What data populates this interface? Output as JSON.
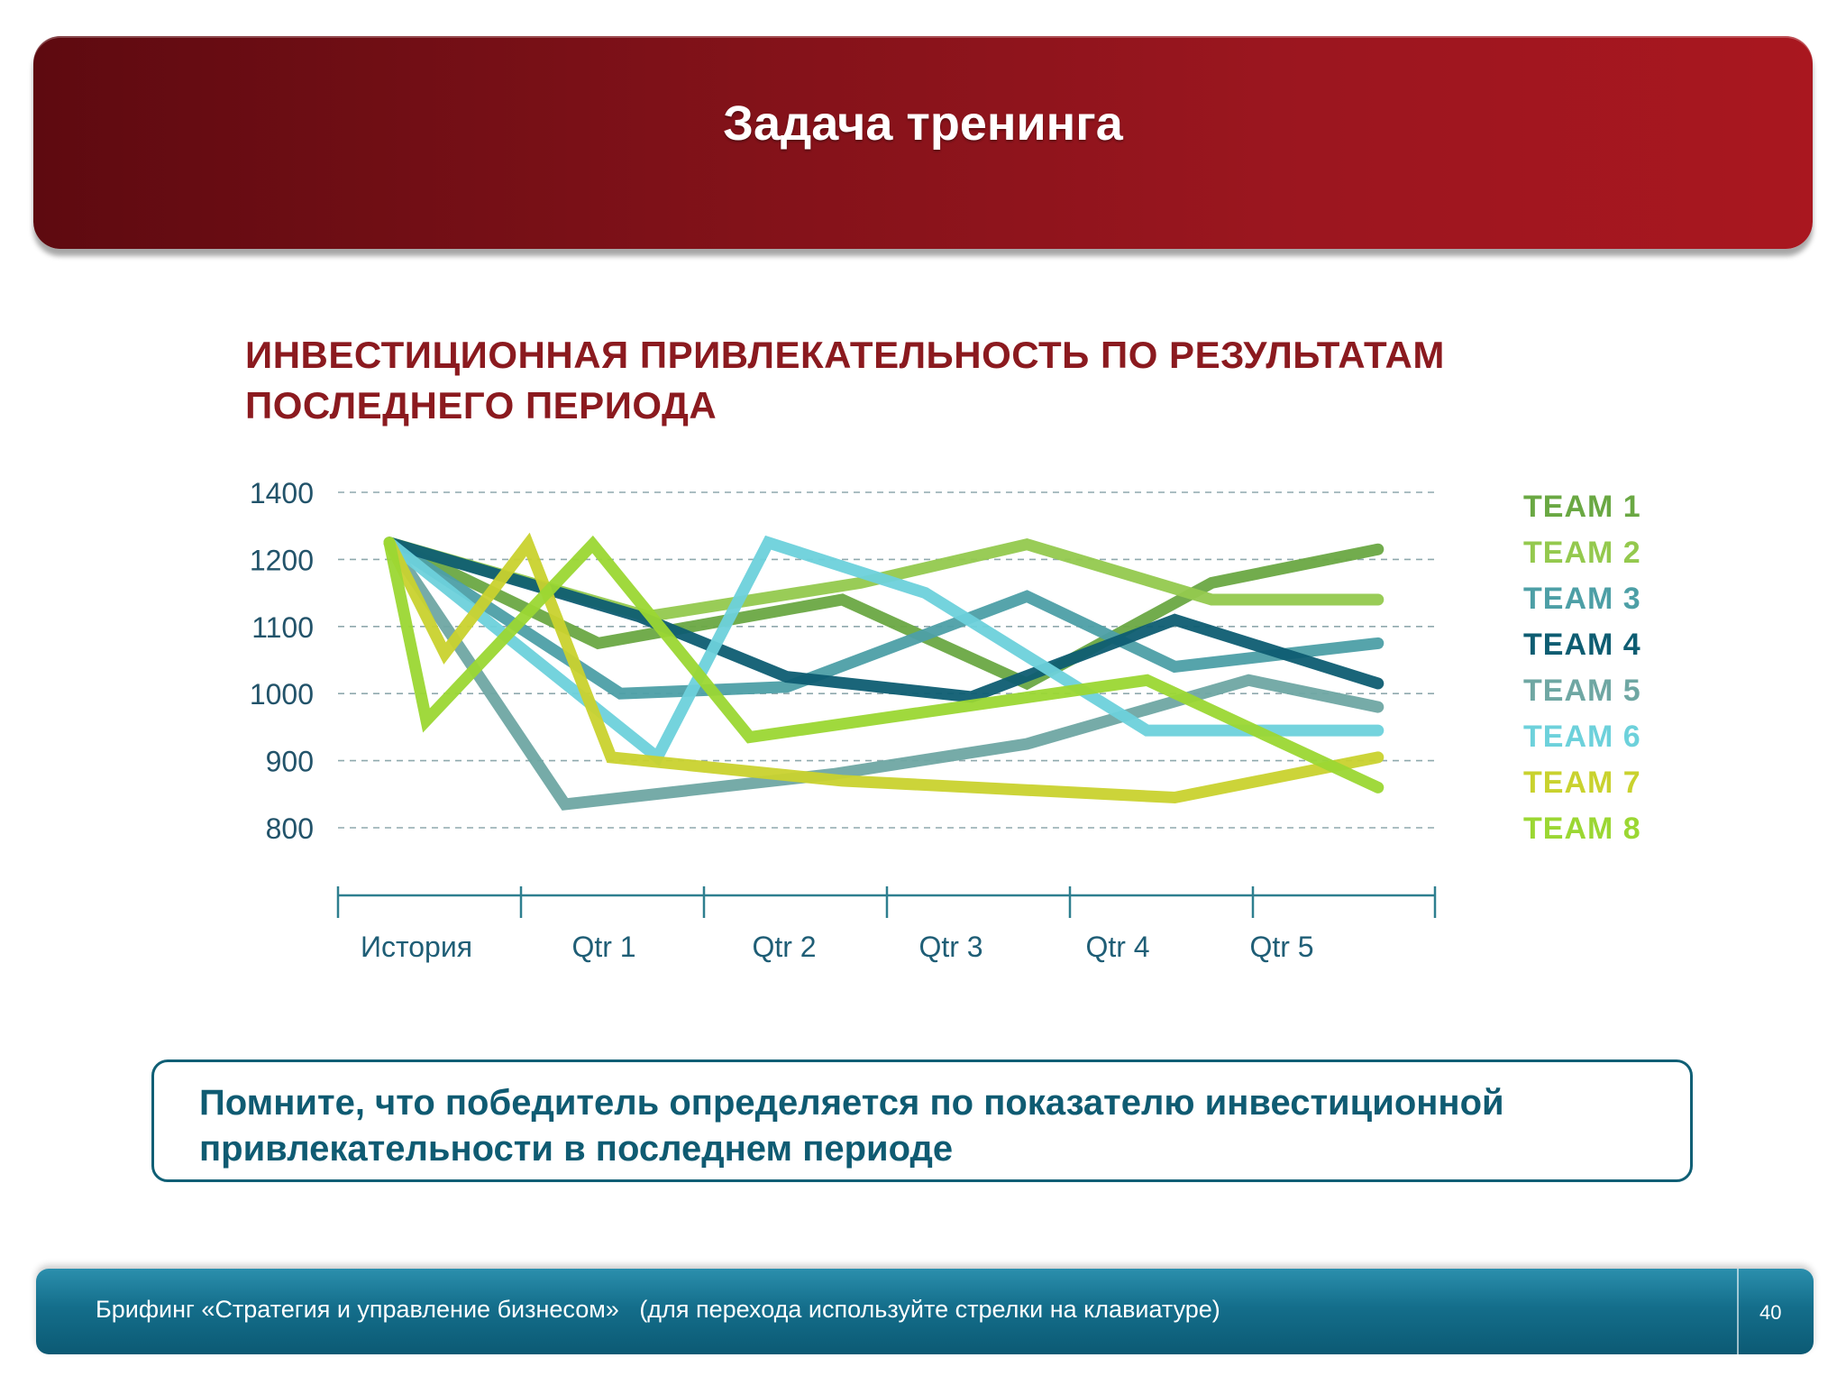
{
  "header": {
    "title": "Задача тренинга"
  },
  "chart_heading": {
    "line1": "ИНВЕСТИЦИОННАЯ  ПРИВЛЕКАТЕЛЬНОСТЬ  ПО  РЕЗУЛЬТАТАМ",
    "line2": "ПОСЛЕДНЕГО ПЕРИОДА"
  },
  "chart_data": {
    "type": "line",
    "title": "",
    "xlabel": "",
    "ylabel": "",
    "categories": [
      "История",
      "Qtr 1",
      "Qtr 2",
      "Qtr 3",
      "Qtr 4",
      "Qtr 5"
    ],
    "yticks": [
      1400,
      1200,
      1100,
      1000,
      900,
      800
    ],
    "grid": true,
    "legend": "right",
    "series": [
      {
        "name": "TEAM 1",
        "color": "#6aa843",
        "points": [
          [
            0,
            1250
          ],
          [
            1.13,
            1075
          ],
          [
            2.45,
            1140
          ],
          [
            3.45,
            1015
          ],
          [
            4.45,
            1165
          ],
          [
            5.35,
            1230
          ]
        ]
      },
      {
        "name": "TEAM 2",
        "color": "#94c94e",
        "points": [
          [
            0,
            1250
          ],
          [
            1.4,
            1115
          ],
          [
            2.55,
            1165
          ],
          [
            3.45,
            1245
          ],
          [
            4.45,
            1140
          ],
          [
            5.35,
            1140
          ]
        ]
      },
      {
        "name": "TEAM 3",
        "color": "#4d9fa6",
        "points": [
          [
            0,
            1250
          ],
          [
            1.25,
            1000
          ],
          [
            2.15,
            1010
          ],
          [
            3.45,
            1145
          ],
          [
            4.25,
            1040
          ],
          [
            5.35,
            1075
          ]
        ]
      },
      {
        "name": "TEAM 4",
        "color": "#0e5d72",
        "points": [
          [
            0,
            1250
          ],
          [
            1.35,
            1115
          ],
          [
            2.15,
            1025
          ],
          [
            3.15,
            995
          ],
          [
            4.25,
            1110
          ],
          [
            5.35,
            1015
          ]
        ]
      },
      {
        "name": "TEAM 5",
        "color": "#6fa7a3",
        "points": [
          [
            0,
            1250
          ],
          [
            0.95,
            835
          ],
          [
            2.4,
            880
          ],
          [
            3.45,
            925
          ],
          [
            4.65,
            1020
          ],
          [
            5.35,
            980
          ]
        ]
      },
      {
        "name": "TEAM 6",
        "color": "#6dd1db",
        "points": [
          [
            0,
            1250
          ],
          [
            1.45,
            905
          ],
          [
            2.05,
            1250
          ],
          [
            2.9,
            1150
          ],
          [
            4.1,
            945
          ],
          [
            5.35,
            945
          ]
        ]
      },
      {
        "name": "TEAM 7",
        "color": "#c9d22e",
        "points": [
          [
            0,
            1250
          ],
          [
            0.3,
            1060
          ],
          [
            0.75,
            1245
          ],
          [
            1.2,
            905
          ],
          [
            2.45,
            870
          ],
          [
            4.25,
            845
          ],
          [
            5.35,
            905
          ]
        ]
      },
      {
        "name": "TEAM 8",
        "color": "#9bd733",
        "points": [
          [
            0,
            1250
          ],
          [
            0.2,
            960
          ],
          [
            1.1,
            1245
          ],
          [
            1.95,
            935
          ],
          [
            4.1,
            1020
          ],
          [
            5.35,
            860
          ]
        ]
      }
    ]
  },
  "legend": {
    "items": [
      {
        "label": "TEAM 1",
        "color": "#6aa843"
      },
      {
        "label": "TEAM 2",
        "color": "#94c94e"
      },
      {
        "label": "TEAM 3",
        "color": "#4d9fa6"
      },
      {
        "label": "TEAM 4",
        "color": "#0e5d72"
      },
      {
        "label": "TEAM 5",
        "color": "#6fa7a3"
      },
      {
        "label": "TEAM 6",
        "color": "#6dd1db"
      },
      {
        "label": "TEAM 7",
        "color": "#c9d22e"
      },
      {
        "label": "TEAM 8",
        "color": "#9bd733"
      }
    ]
  },
  "note": {
    "line1": "Помните, что победитель определяется по показателю инвестиционной",
    "line2": "привлекательности в последнем периоде"
  },
  "footer": {
    "text": "Брифинг «Стратегия и управление бизнесом»   (для перехода используйте стрелки на клавиатуре)",
    "page": "40"
  },
  "colors": {
    "header": "#8a131b",
    "heading": "#8b1a1f",
    "axis": "#2e7f8f",
    "note": "#0f5b72",
    "footer": "#146e8b"
  }
}
